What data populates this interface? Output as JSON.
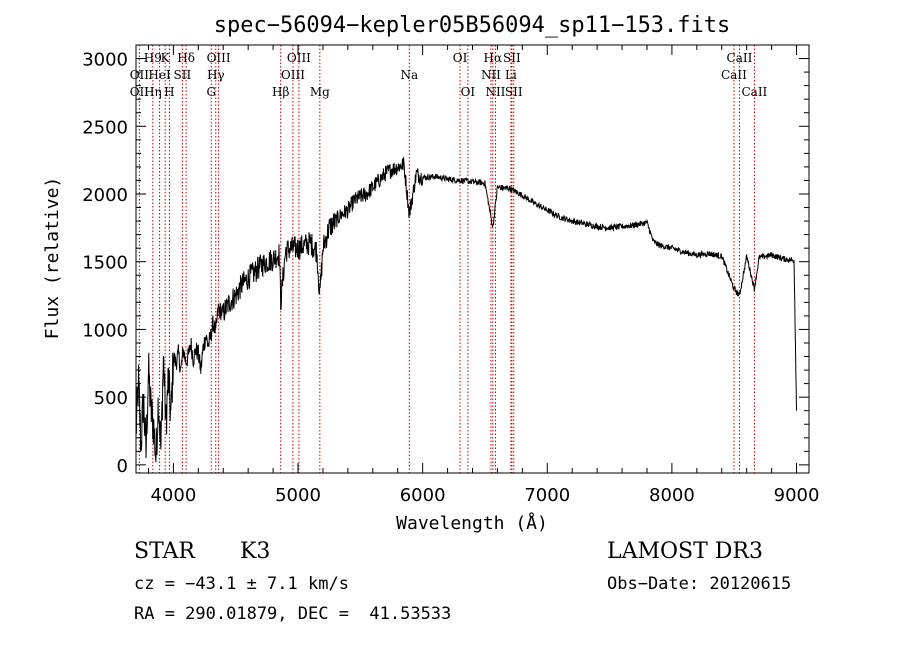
{
  "chart_data": {
    "type": "line",
    "title": "spec−56094−kepler05B56094_sp11−153.fits",
    "xlabel": "Wavelength (Å)",
    "ylabel": "Flux (relative)",
    "xlim": [
      3700,
      9100
    ],
    "ylim": [
      -60,
      3100
    ],
    "xticks": [
      4000,
      5000,
      6000,
      7000,
      8000,
      9000
    ],
    "xtick_labels": [
      "4000",
      "5000",
      "6000",
      "7000",
      "8000",
      "9000"
    ],
    "yticks": [
      0,
      500,
      1000,
      1500,
      2000,
      2500,
      3000
    ],
    "ytick_labels": [
      "0",
      "500",
      "1000",
      "1500",
      "2000",
      "2500",
      "3000"
    ],
    "grid": false,
    "series": [
      {
        "name": "spectrum",
        "x": [
          3700,
          3720,
          3740,
          3760,
          3780,
          3800,
          3820,
          3840,
          3860,
          3880,
          3900,
          3920,
          3940,
          3960,
          3980,
          4000,
          4020,
          4040,
          4060,
          4080,
          4100,
          4120,
          4140,
          4160,
          4180,
          4200,
          4220,
          4240,
          4260,
          4280,
          4300,
          4320,
          4340,
          4360,
          4400,
          4450,
          4500,
          4550,
          4600,
          4650,
          4700,
          4750,
          4800,
          4850,
          4861,
          4900,
          4950,
          5000,
          5050,
          5100,
          5150,
          5175,
          5200,
          5250,
          5300,
          5350,
          5400,
          5450,
          5500,
          5550,
          5600,
          5650,
          5700,
          5750,
          5800,
          5850,
          5893,
          5950,
          6000,
          6100,
          6200,
          6300,
          6400,
          6500,
          6563,
          6600,
          6700,
          6800,
          6900,
          7000,
          7100,
          7200,
          7300,
          7400,
          7500,
          7600,
          7700,
          7800,
          7850,
          7900,
          8000,
          8100,
          8200,
          8300,
          8400,
          8498,
          8542,
          8600,
          8662,
          8700,
          8800,
          8900,
          8980,
          9000
        ],
        "y": [
          250,
          600,
          150,
          500,
          80,
          700,
          400,
          300,
          50,
          500,
          100,
          800,
          300,
          650,
          350,
          800,
          750,
          820,
          700,
          850,
          760,
          800,
          900,
          780,
          850,
          820,
          700,
          870,
          950,
          880,
          950,
          1050,
          980,
          1150,
          1120,
          1200,
          1250,
          1330,
          1380,
          1420,
          1470,
          1500,
          1520,
          1560,
          1200,
          1580,
          1600,
          1600,
          1620,
          1640,
          1580,
          1250,
          1600,
          1750,
          1800,
          1850,
          1880,
          1950,
          1980,
          2000,
          2050,
          2100,
          2150,
          2180,
          2200,
          2220,
          1850,
          2150,
          2120,
          2130,
          2110,
          2100,
          2090,
          2080,
          1750,
          2050,
          2040,
          1990,
          1930,
          1880,
          1830,
          1800,
          1780,
          1760,
          1750,
          1760,
          1770,
          1790,
          1650,
          1620,
          1600,
          1570,
          1550,
          1560,
          1540,
          1300,
          1250,
          1540,
          1300,
          1530,
          1550,
          1520,
          1510,
          400
        ]
      }
    ],
    "line_labels": [
      {
        "name": "H9",
        "x": 3835,
        "row": 1
      },
      {
        "name": "K",
        "x": 3934,
        "row": 1
      },
      {
        "name": "Hδ",
        "x": 4102,
        "row": 1
      },
      {
        "name": "OIII",
        "x": 4363,
        "row": 1
      },
      {
        "name": "OIII",
        "x": 5007,
        "row": 1
      },
      {
        "name": "OI",
        "x": 6300,
        "row": 1
      },
      {
        "name": "Hα",
        "x": 6563,
        "row": 1
      },
      {
        "name": "SII",
        "x": 6716,
        "row": 1
      },
      {
        "name": "CaII",
        "x": 8542,
        "row": 1
      },
      {
        "name": "OII",
        "x": 3727,
        "row": 2
      },
      {
        "name": "HeI",
        "x": 3889,
        "row": 2
      },
      {
        "name": "SII",
        "x": 4072,
        "row": 2
      },
      {
        "name": "Hγ",
        "x": 4340,
        "row": 2
      },
      {
        "name": "OIII",
        "x": 4959,
        "row": 2
      },
      {
        "name": "Na",
        "x": 5893,
        "row": 2
      },
      {
        "name": "NII",
        "x": 6548,
        "row": 2
      },
      {
        "name": "Li",
        "x": 6708,
        "row": 2
      },
      {
        "name": "CaII",
        "x": 8498,
        "row": 2
      },
      {
        "name": "OII",
        "x": 3727,
        "row": 3
      },
      {
        "name": "Hη",
        "x": 3835,
        "row": 3
      },
      {
        "name": "H",
        "x": 3968,
        "row": 3
      },
      {
        "name": "G",
        "x": 4304,
        "row": 3
      },
      {
        "name": "Hβ",
        "x": 4861,
        "row": 3
      },
      {
        "name": "Mg",
        "x": 5175,
        "row": 3
      },
      {
        "name": "OI",
        "x": 6363,
        "row": 3
      },
      {
        "name": "NII",
        "x": 6584,
        "row": 3
      },
      {
        "name": "SII",
        "x": 6731,
        "row": 3
      },
      {
        "name": "CaII",
        "x": 8662,
        "row": 3
      }
    ],
    "line_positions": [
      3727,
      3835,
      3889,
      3934,
      3968,
      4072,
      4102,
      4304,
      4340,
      4363,
      4861,
      4959,
      5007,
      5175,
      5893,
      6300,
      6363,
      6548,
      6563,
      6584,
      6708,
      6716,
      6731,
      8498,
      8542,
      8662
    ]
  },
  "info": {
    "object_type": "STAR",
    "subclass": "K3",
    "survey": "LAMOST DR3",
    "cz": "cz = −43.1 ± 7.1 km/s",
    "obs_date": "Obs−Date: 20120615",
    "coords": "RA = 290.01879, DEC =  41.53533"
  },
  "colors": {
    "axis": "#000000",
    "spectrum": "#000000",
    "line_marker": "#cc0000"
  }
}
